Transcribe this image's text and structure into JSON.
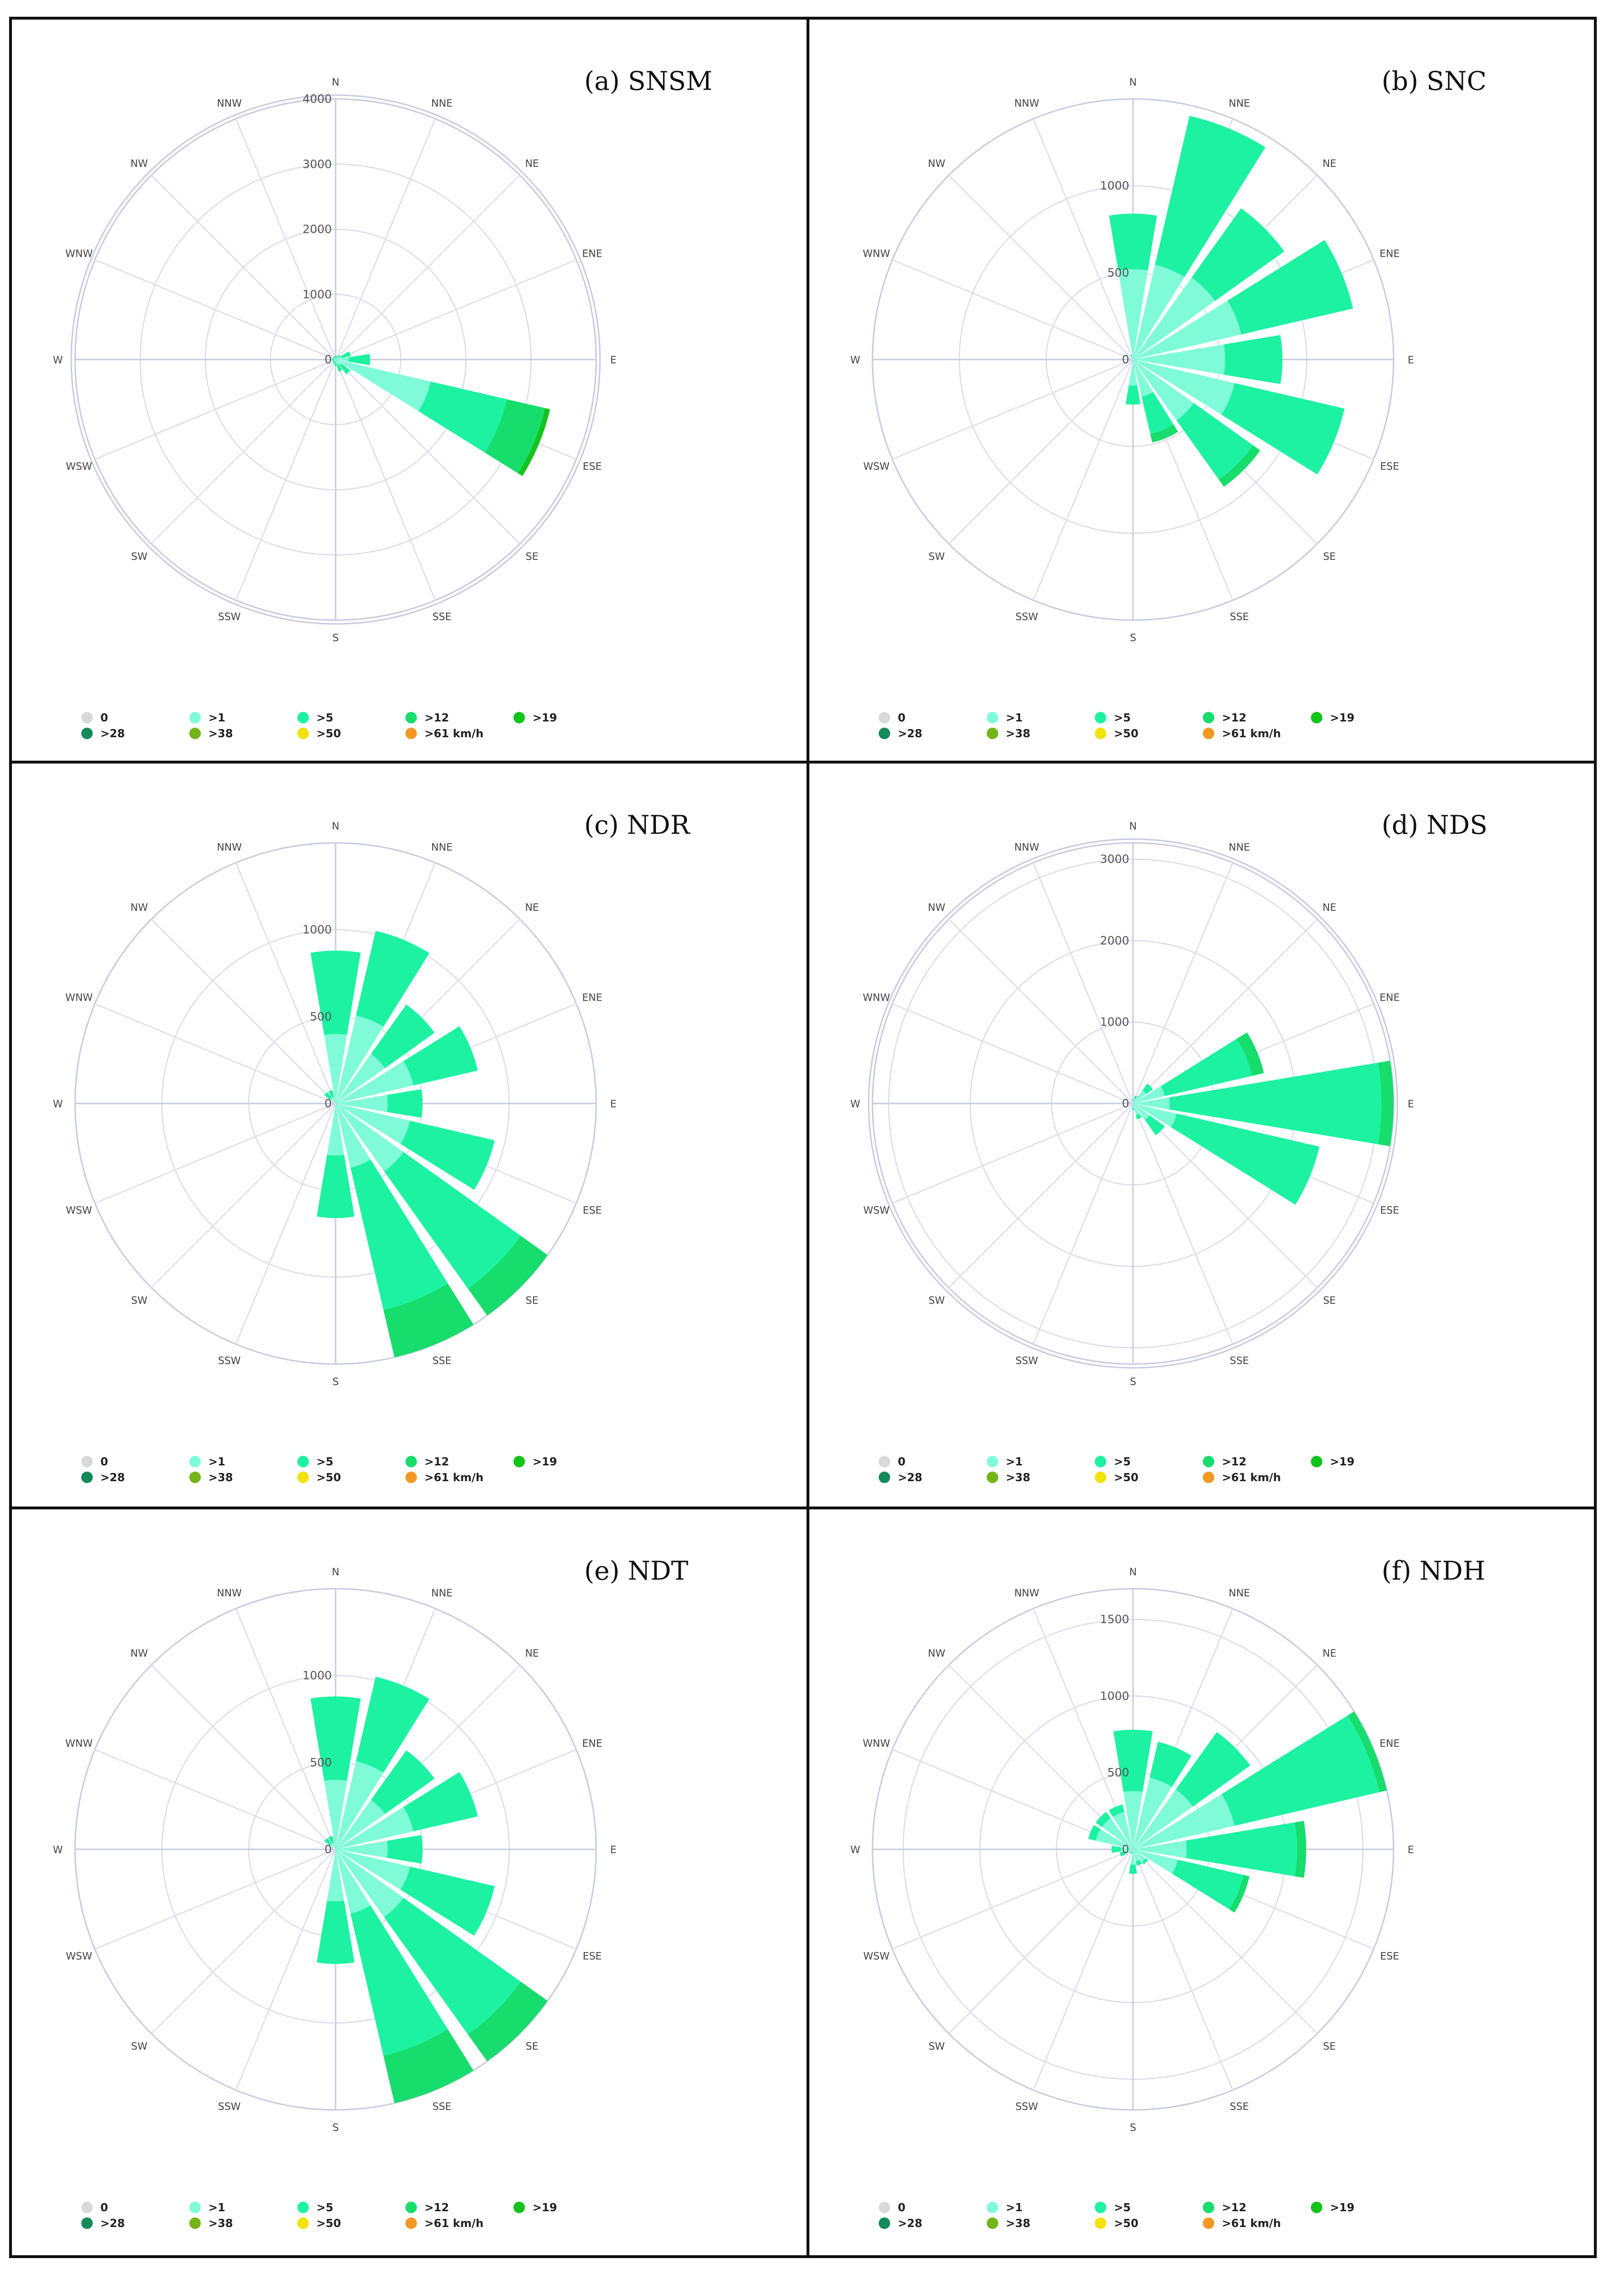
{
  "figure": {
    "columns": 2,
    "rows": 3
  },
  "legend": {
    "items": [
      {
        "label": "0",
        "color": "#d9d9d9"
      },
      {
        "label": ">1",
        "color": "#7ffcd7"
      },
      {
        "label": ">5",
        "color": "#1cf2a1"
      },
      {
        "label": ">12",
        "color": "#17dd6c"
      },
      {
        "label": ">19",
        "color": "#14c31c"
      },
      {
        "label": ">28",
        "color": "#138a5a"
      },
      {
        "label": ">38",
        "color": "#73b518"
      },
      {
        "label": ">50",
        "color": "#f2e208"
      },
      {
        "label": ">61 km/h",
        "color": "#f39824"
      }
    ]
  },
  "directions": [
    "N",
    "NNE",
    "NE",
    "ENE",
    "E",
    "ESE",
    "SE",
    "SSE",
    "S",
    "SSW",
    "SW",
    "WSW",
    "W",
    "WNW",
    "NW",
    "NNW"
  ],
  "chart_data": [
    {
      "type": "windrose",
      "title": "(a) SNSM",
      "rmax": 4000,
      "ticks": [
        "0",
        "1000",
        "2000",
        "3000",
        "4000"
      ],
      "tick_values": [
        0,
        1000,
        2000,
        3000,
        4000
      ],
      "series": [
        {
          "name": ">1",
          "values": [
            30,
            25,
            40,
            90,
            200,
            1500,
            100,
            70,
            40,
            30,
            25,
            20,
            30,
            25,
            20,
            25
          ]
        },
        {
          "name": ">5",
          "values": [
            30,
            30,
            50,
            150,
            330,
            1200,
            180,
            120,
            60,
            40,
            30,
            25,
            30,
            25,
            20,
            25
          ]
        },
        {
          "name": ">12",
          "values": [
            0,
            0,
            0,
            0,
            0,
            600,
            0,
            0,
            0,
            0,
            0,
            0,
            0,
            0,
            0,
            0
          ]
        },
        {
          "name": ">19",
          "values": [
            0,
            0,
            0,
            0,
            0,
            80,
            0,
            0,
            0,
            0,
            0,
            0,
            0,
            0,
            0,
            0
          ]
        }
      ]
    },
    {
      "type": "windrose",
      "title": "(b) SNC",
      "rmax": 1500,
      "ticks": [
        "0",
        "500",
        "1000"
      ],
      "tick_values": [
        0,
        500,
        1000
      ],
      "series": [
        {
          "name": ">1",
          "values": [
            520,
            560,
            580,
            640,
            530,
            600,
            430,
            220,
            150,
            0,
            0,
            0,
            0,
            0,
            0,
            20
          ]
        },
        {
          "name": ">5",
          "values": [
            320,
            880,
            490,
            660,
            330,
            650,
            420,
            220,
            110,
            0,
            0,
            0,
            0,
            0,
            0,
            10
          ]
        },
        {
          "name": ">12",
          "values": [
            0,
            0,
            0,
            0,
            0,
            0,
            50,
            50,
            0,
            0,
            0,
            0,
            0,
            0,
            0,
            0
          ]
        }
      ]
    },
    {
      "type": "windrose",
      "title": "(c) NDR",
      "rmax": 1500,
      "ticks": [
        "0",
        "500",
        "1000"
      ],
      "tick_values": [
        0,
        500,
        1000
      ],
      "series": [
        {
          "name": ">1",
          "values": [
            400,
            520,
            350,
            460,
            300,
            440,
            480,
            380,
            300,
            0,
            0,
            0,
            0,
            0,
            40,
            40
          ]
        },
        {
          "name": ">5",
          "values": [
            480,
            500,
            350,
            380,
            200,
            500,
            830,
            840,
            360,
            0,
            0,
            0,
            0,
            0,
            40,
            40
          ]
        },
        {
          "name": ">12",
          "values": [
            0,
            0,
            0,
            0,
            0,
            0,
            190,
            380,
            0,
            0,
            0,
            0,
            0,
            0,
            0,
            0
          ]
        }
      ]
    },
    {
      "type": "windrose",
      "title": "(d) NDS",
      "rmax": 3200,
      "ticks": [
        "0",
        "1000",
        "2000",
        "3000"
      ],
      "tick_values": [
        0,
        1000,
        2000,
        3000
      ],
      "series": [
        {
          "name": ">1",
          "values": [
            30,
            60,
            200,
            400,
            450,
            550,
            250,
            150,
            60,
            0,
            0,
            0,
            0,
            0,
            0,
            0
          ]
        },
        {
          "name": ">5",
          "values": [
            20,
            40,
            100,
            1100,
            2600,
            1800,
            230,
            50,
            20,
            0,
            0,
            0,
            0,
            0,
            0,
            0
          ]
        },
        {
          "name": ">12",
          "values": [
            0,
            0,
            0,
            150,
            170,
            0,
            0,
            0,
            0,
            0,
            0,
            0,
            0,
            0,
            0,
            0
          ]
        }
      ]
    },
    {
      "type": "windrose",
      "title": "(e) NDT",
      "rmax": 1500,
      "ticks": [
        "0",
        "500",
        "1000"
      ],
      "tick_values": [
        0,
        500,
        1000
      ],
      "series": [
        {
          "name": ">1",
          "values": [
            400,
            520,
            350,
            460,
            300,
            440,
            480,
            380,
            300,
            0,
            0,
            0,
            0,
            0,
            40,
            40
          ]
        },
        {
          "name": ">5",
          "values": [
            480,
            500,
            350,
            380,
            200,
            500,
            830,
            840,
            360,
            0,
            0,
            0,
            0,
            0,
            40,
            40
          ]
        },
        {
          "name": ">12",
          "values": [
            0,
            0,
            0,
            0,
            0,
            0,
            190,
            380,
            0,
            0,
            0,
            0,
            0,
            0,
            0,
            0
          ]
        }
      ]
    },
    {
      "type": "windrose",
      "title": "(f) NDH",
      "rmax": 1700,
      "ticks": [
        "0",
        "500",
        "1000",
        "1500"
      ],
      "tick_values": [
        0,
        500,
        1000,
        1500
      ],
      "series": [
        {
          "name": ">1",
          "values": [
            380,
            480,
            480,
            680,
            350,
            300,
            100,
            80,
            100,
            20,
            20,
            50,
            80,
            250,
            250,
            250
          ]
        },
        {
          "name": ">5",
          "values": [
            400,
            240,
            460,
            970,
            720,
            440,
            20,
            30,
            60,
            10,
            10,
            40,
            60,
            50,
            50,
            50
          ]
        },
        {
          "name": ">12",
          "values": [
            0,
            0,
            0,
            50,
            60,
            40,
            0,
            0,
            0,
            0,
            0,
            0,
            0,
            0,
            0,
            0
          ]
        }
      ]
    }
  ]
}
